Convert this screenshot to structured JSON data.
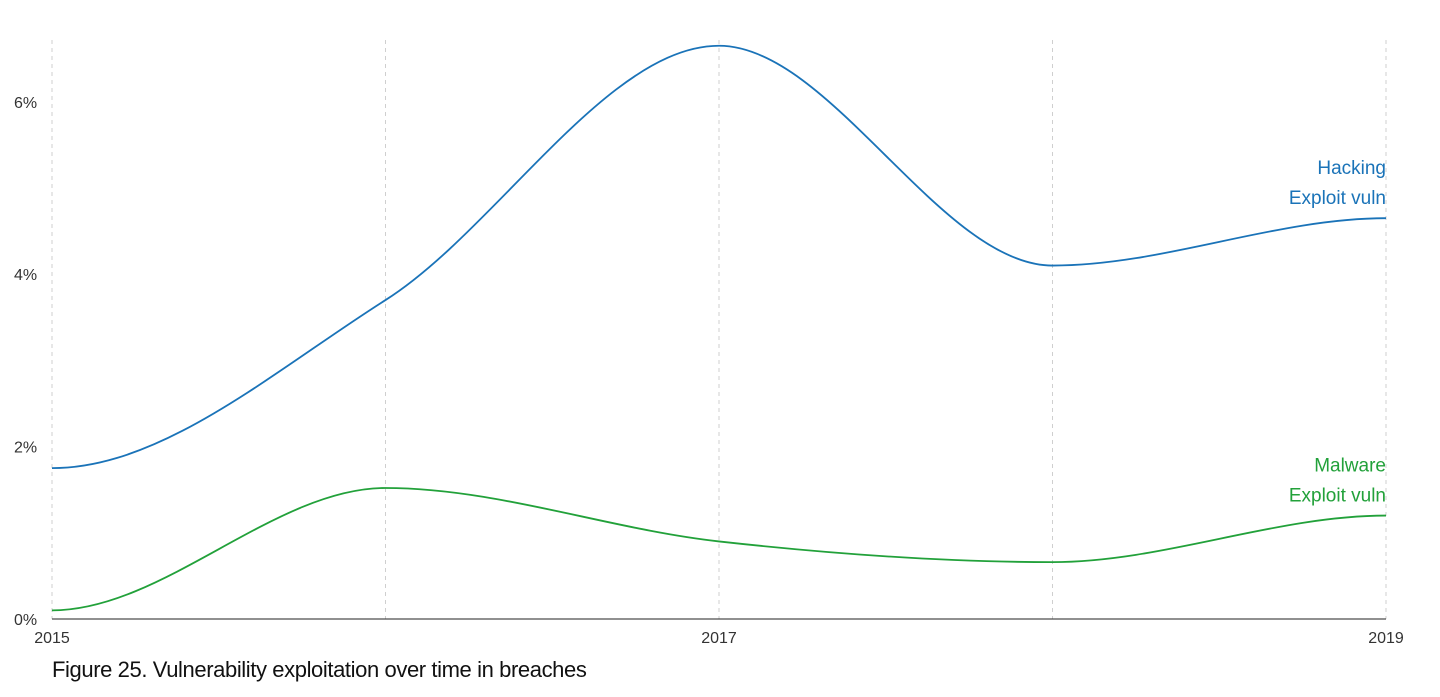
{
  "caption": "Figure 25. Vulnerability exploitation over time in breaches",
  "chart_data": {
    "type": "line",
    "title": "Figure 25. Vulnerability exploitation over time in breaches",
    "x": [
      2015,
      2016,
      2017,
      2018,
      2019
    ],
    "x_tick_labels": [
      "2015",
      "2017",
      "2019"
    ],
    "x_tick_values": [
      2015,
      2017,
      2019
    ],
    "xlim": [
      2015,
      2019
    ],
    "y_tick_labels": [
      "0%",
      "2%",
      "4%",
      "6%"
    ],
    "y_tick_values": [
      0,
      2,
      4,
      6
    ],
    "ylim": [
      0,
      7
    ],
    "y_unit": "%",
    "grid": "vertical dashed lines at each year",
    "series": [
      {
        "name": "Hacking Exploit vuln",
        "label_lines": [
          "Hacking",
          "Exploit vuln"
        ],
        "color": "#1a73b8",
        "values": [
          1.75,
          3.7,
          6.65,
          4.1,
          4.65
        ]
      },
      {
        "name": "Malware Exploit vuln",
        "label_lines": [
          "Malware",
          "Exploit vuln"
        ],
        "color": "#22a13a",
        "values": [
          0.1,
          1.52,
          0.9,
          0.66,
          1.2
        ]
      }
    ]
  }
}
